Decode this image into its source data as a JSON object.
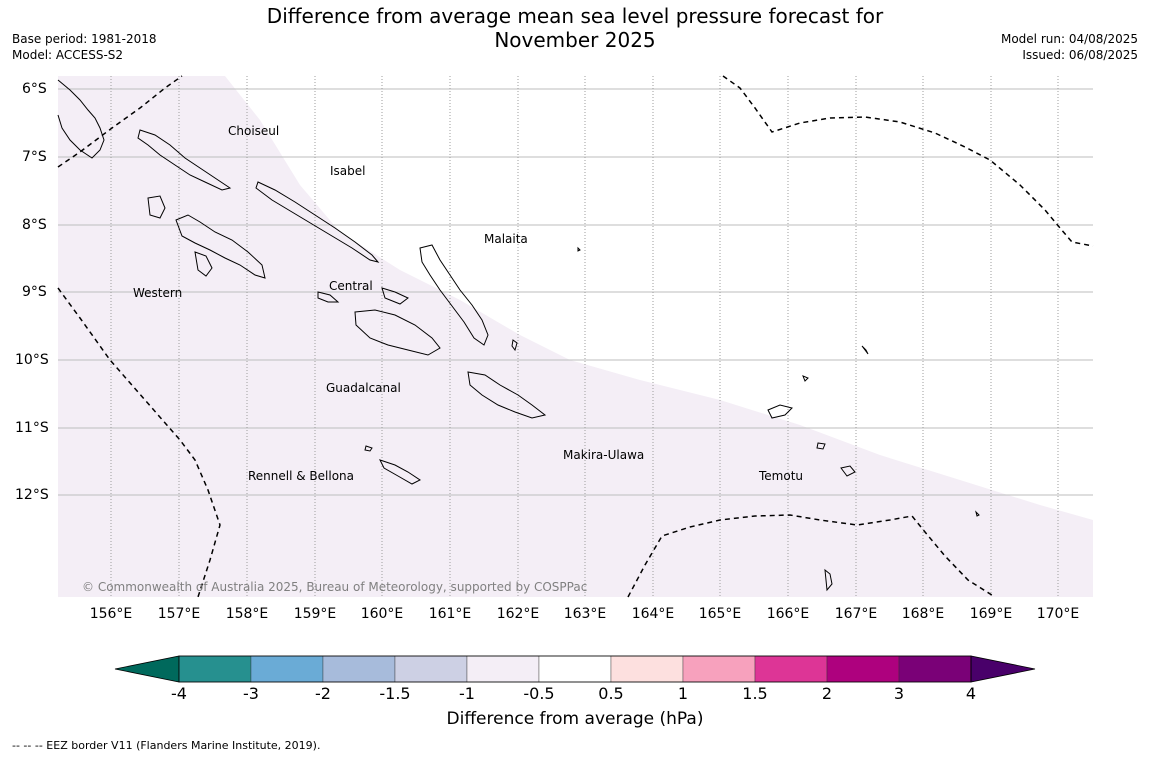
{
  "title": "Difference from average mean sea level pressure forecast for",
  "subtitle": "November 2025",
  "meta_left": {
    "base_period": "Base period: 1981-2018",
    "model": "Model: ACCESS-S2"
  },
  "meta_right": {
    "model_run": "Model run: 04/08/2025",
    "issued": "Issued: 06/08/2025"
  },
  "map": {
    "lat_labels": [
      "6°S",
      "7°S",
      "8°S",
      "9°S",
      "10°S",
      "11°S",
      "12°S"
    ],
    "lon_labels": [
      "156°E",
      "157°E",
      "158°E",
      "159°E",
      "160°E",
      "161°E",
      "162°E",
      "163°E",
      "164°E",
      "165°E",
      "166°E",
      "167°E",
      "168°E",
      "169°E",
      "170°E"
    ],
    "places": [
      {
        "name": "Choiseul"
      },
      {
        "name": "Isabel"
      },
      {
        "name": "Malaita"
      },
      {
        "name": "Western"
      },
      {
        "name": "Central"
      },
      {
        "name": "Guadalcanal"
      },
      {
        "name": "Makira-Ulawa"
      },
      {
        "name": "Rennell & Bellona"
      },
      {
        "name": "Temotu"
      }
    ],
    "shaded_category": "-1 to -0.5",
    "copyright": "© Commonwealth of Australia 2025, Bureau of Meteorology, supported by COSPPac"
  },
  "colorbar": {
    "ticks": [
      "-4",
      "-3",
      "-2",
      "-1.5",
      "-1",
      "-0.5",
      "0.5",
      "1",
      "1.5",
      "2",
      "3",
      "4"
    ],
    "colors": [
      "#00695c",
      "#26908f",
      "#6aabd6",
      "#a7bbdb",
      "#cdd0e4",
      "#f4eef6",
      "#ffffff",
      "#fde0df",
      "#f7a1bd",
      "#dd3596",
      "#ae017e",
      "#7a0177",
      "#49006a"
    ],
    "label": "Difference from average (hPa)"
  },
  "footnote": "--  --  -- EEZ border V11 (Flanders Marine Institute, 2019)."
}
